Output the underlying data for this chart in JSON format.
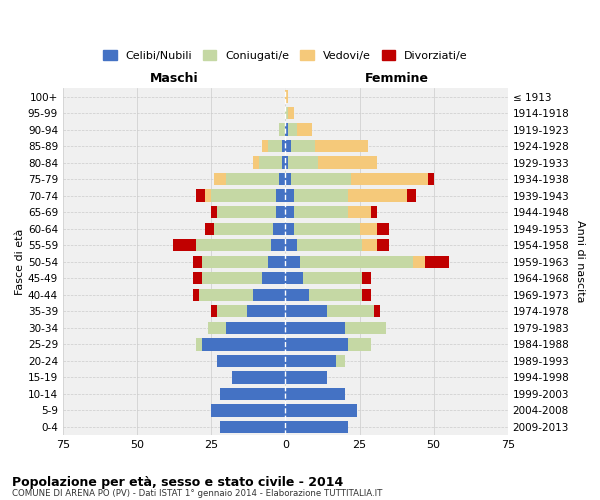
{
  "age_groups": [
    "0-4",
    "5-9",
    "10-14",
    "15-19",
    "20-24",
    "25-29",
    "30-34",
    "35-39",
    "40-44",
    "45-49",
    "50-54",
    "55-59",
    "60-64",
    "65-69",
    "70-74",
    "75-79",
    "80-84",
    "85-89",
    "90-94",
    "95-99",
    "100+"
  ],
  "birth_years": [
    "2009-2013",
    "2004-2008",
    "1999-2003",
    "1994-1998",
    "1989-1993",
    "1984-1988",
    "1979-1983",
    "1974-1978",
    "1969-1973",
    "1964-1968",
    "1959-1963",
    "1954-1958",
    "1949-1953",
    "1944-1948",
    "1939-1943",
    "1934-1938",
    "1929-1933",
    "1924-1928",
    "1919-1923",
    "1914-1918",
    "≤ 1913"
  ],
  "colors": {
    "celibi": "#4472C4",
    "coniugati": "#C5D8A4",
    "vedovi": "#F5C97A",
    "divorziati": "#C00000"
  },
  "males": {
    "celibi": [
      22,
      25,
      22,
      18,
      23,
      28,
      20,
      13,
      11,
      8,
      6,
      5,
      4,
      3,
      3,
      2,
      1,
      1,
      0,
      0,
      0
    ],
    "coniugati": [
      0,
      0,
      0,
      0,
      0,
      2,
      6,
      10,
      18,
      20,
      22,
      25,
      20,
      20,
      22,
      18,
      8,
      5,
      2,
      0,
      0
    ],
    "vedovi": [
      0,
      0,
      0,
      0,
      0,
      0,
      0,
      0,
      0,
      0,
      0,
      0,
      0,
      0,
      2,
      4,
      2,
      2,
      0,
      0,
      0
    ],
    "divorziati": [
      0,
      0,
      0,
      0,
      0,
      0,
      0,
      2,
      2,
      3,
      3,
      8,
      3,
      2,
      3,
      0,
      0,
      0,
      0,
      0,
      0
    ]
  },
  "females": {
    "celibi": [
      21,
      24,
      20,
      14,
      17,
      21,
      20,
      14,
      8,
      6,
      5,
      4,
      3,
      3,
      3,
      2,
      1,
      2,
      1,
      0,
      0
    ],
    "coniugati": [
      0,
      0,
      0,
      0,
      3,
      8,
      14,
      16,
      18,
      20,
      38,
      22,
      22,
      18,
      18,
      20,
      10,
      8,
      3,
      1,
      0
    ],
    "vedovi": [
      0,
      0,
      0,
      0,
      0,
      0,
      0,
      0,
      0,
      0,
      4,
      5,
      6,
      8,
      20,
      26,
      20,
      18,
      5,
      2,
      1
    ],
    "divorziati": [
      0,
      0,
      0,
      0,
      0,
      0,
      0,
      2,
      3,
      3,
      8,
      4,
      4,
      2,
      3,
      2,
      0,
      0,
      0,
      0,
      0
    ]
  },
  "xlim": 75,
  "title": "Popolazione per età, sesso e stato civile - 2014",
  "subtitle": "COMUNE DI ARENA PO (PV) - Dati ISTAT 1° gennaio 2014 - Elaborazione TUTTITALIA.IT",
  "xlabel_left": "Maschi",
  "xlabel_right": "Femmine",
  "ylabel_left": "Fasce di età",
  "ylabel_right": "Anni di nascita",
  "legend_labels": [
    "Celibi/Nubili",
    "Coniugati/e",
    "Vedovi/e",
    "Divorziati/e"
  ],
  "bg_color": "#f0f0f0",
  "grid_color": "#cccccc"
}
